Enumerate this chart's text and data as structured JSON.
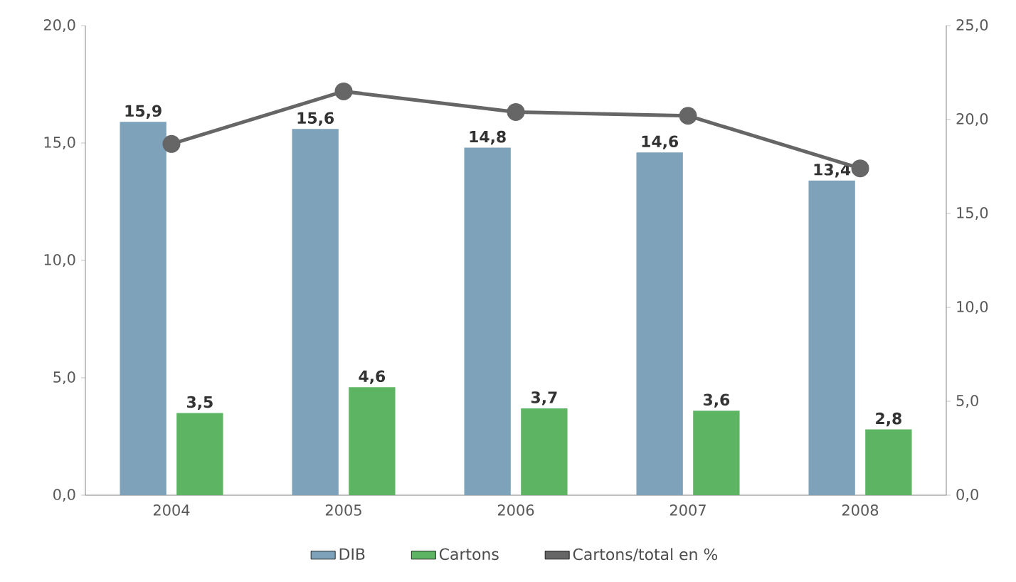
{
  "chart_data": {
    "type": "bar",
    "categories": [
      "2004",
      "2005",
      "2006",
      "2007",
      "2008"
    ],
    "series": [
      {
        "name": "DIB",
        "color": "#7ea2b9",
        "values": [
          15.9,
          15.6,
          14.8,
          14.6,
          13.4
        ],
        "value_labels": [
          "15,9",
          "15,6",
          "14,8",
          "14,6",
          "13,4"
        ]
      },
      {
        "name": "Cartons",
        "color": "#5db564",
        "values": [
          3.5,
          4.6,
          3.7,
          3.6,
          2.8
        ],
        "value_labels": [
          "3,5",
          "4,6",
          "3,7",
          "3,6",
          "2,8"
        ]
      },
      {
        "name": "Cartons/total en %",
        "color": "#666666",
        "type": "line",
        "axis": "y2",
        "marker": "circle",
        "values": [
          18.7,
          21.5,
          20.4,
          20.2,
          17.4
        ]
      }
    ],
    "ylim": [
      0,
      20
    ],
    "yticks": [
      {
        "value": 0,
        "label": "0,0"
      },
      {
        "value": 5,
        "label": "5,0"
      },
      {
        "value": 10,
        "label": "10,0"
      },
      {
        "value": 15,
        "label": "15,0"
      },
      {
        "value": 20,
        "label": "20,0"
      }
    ],
    "y2lim": [
      0,
      25
    ],
    "y2ticks": [
      {
        "value": 0,
        "label": "0,0"
      },
      {
        "value": 5,
        "label": "5,0"
      },
      {
        "value": 10,
        "label": "10,0"
      },
      {
        "value": 15,
        "label": "15,0"
      },
      {
        "value": 20,
        "label": "20,0"
      },
      {
        "value": 25,
        "label": "25,0"
      }
    ],
    "legend": "bottom"
  }
}
